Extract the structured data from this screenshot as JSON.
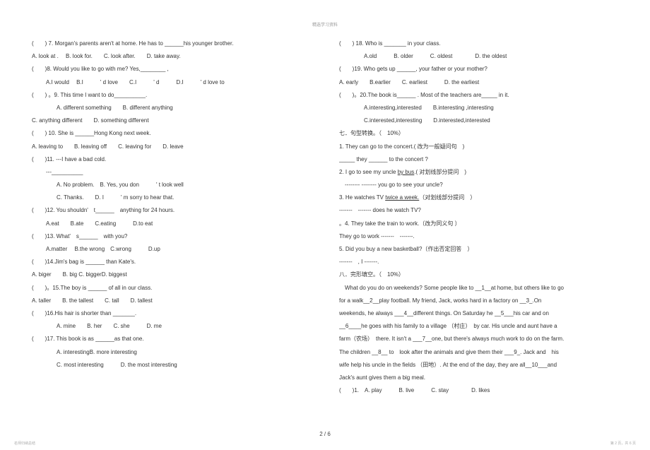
{
  "header": "精选学习资料",
  "left": [
    {
      "cls": "line",
      "t": "(　　) 7. Morgan's parents aren't at home. He has to ______his younger brother."
    },
    {
      "cls": "line",
      "t": " A. look at .　 B. look for.　　C. look after.　　D. take away."
    },
    {
      "cls": "line",
      "t": "(　　)8. Would you like to go with me? Yes,________ ,"
    },
    {
      "cls": "line indent1",
      "t": "A.I would　 B.I　　　' d love　　C.I　　　' d　　　D.I　　　' d love to"
    },
    {
      "cls": "line",
      "t": "(　　) 。9. This time I want to do__________."
    },
    {
      "cls": "line indent2",
      "t": "A. different something　　B. different anything"
    },
    {
      "cls": "line",
      "t": "C. anything different　　D. something different"
    },
    {
      "cls": "line",
      "t": "(　　) 10. She is ______Hong Kong next week."
    },
    {
      "cls": "line",
      "t": "A. leaving to　　B. leaving off　　C. leaving for　　D. leave"
    },
    {
      "cls": "line",
      "t": "(　　)11. ---I have a bad cold."
    },
    {
      "cls": "line indent1",
      "t": "---__________"
    },
    {
      "cls": "line indent2",
      "t": "A. No problem.　B. Yes, you don　　　' t look well"
    },
    {
      "cls": "line indent2",
      "t": "C. Thanks.　　D. I　　　' m sorry to hear that."
    },
    {
      "cls": "line",
      "t": "(　　)12. You shouldn​'　t______　anything for 24 hours."
    },
    {
      "cls": "line indent1",
      "t": "A.eat　　B.ate　　C.eating　　　D.to eat"
    },
    {
      "cls": "line",
      "t": "(　　)13. What​'　s______　with you?"
    },
    {
      "cls": "line indent1",
      "t": "A.matter　 B.the wrong　C.wrong　　　D.up"
    },
    {
      "cls": "line",
      "t": "(　　)14.Jim's bag is ______ than Kate's."
    },
    {
      "cls": "line",
      "t": "A. biger　　B. big C. biggerD. biggest"
    },
    {
      "cls": "line",
      "t": "(　　)。15.The boy is ______ of all in our class."
    },
    {
      "cls": "line",
      "t": " A. taller　　B. the tallest　　C. tall　　D. tallest"
    },
    {
      "cls": "line",
      "t": "(　　)16.His hair is shorter than _______."
    },
    {
      "cls": "line indent2",
      "t": "A. mine　　B. her　　C. she　　　D. me"
    },
    {
      "cls": "line",
      "t": "(　　)17. This book is as ______as that one."
    },
    {
      "cls": "line indent2",
      "t": "A. interestingB. more interesting"
    },
    {
      "cls": "line indent2",
      "t": "C. most interesting　　　D. the most interesting"
    }
  ],
  "right": [
    {
      "cls": "line",
      "t": "(　　) 18. Who is _______ in your class."
    },
    {
      "cls": "line indent2",
      "t": "A.old　　　B. older　　　C. oldest　　　　D. the oldest"
    },
    {
      "cls": "line",
      "t": "(　　)19. Who gets up ______, your father or your mother?"
    },
    {
      "cls": "line",
      "t": "A. early　　B.earlier　　C. earliest　　　D. the earliest"
    },
    {
      "cls": "line",
      "t": "(　　)。20.The book is______ . Most of the teachers are_____ in it."
    },
    {
      "cls": "line indent2",
      "t": "A.interesting,interested　　B.interesting ,interesting"
    },
    {
      "cls": "line indent2",
      "t": "C.interested,interesting　　D.interested,interested"
    },
    {
      "cls": "line",
      "t": "七．句型转换。（　10%）"
    },
    {
      "cls": "line",
      "t": " 1. They can go to the concert.( 改为一般疑问句　)"
    },
    {
      "cls": "line",
      "t": " _____ they ______ to the concert ?"
    },
    {
      "cls": "line",
      "t": " 2. I go to see my uncle <span class='u'>by bus</span>.( 对划线部分提问　)"
    },
    {
      "cls": "line",
      "t": "　-------- -------- you go to see your uncle?"
    },
    {
      "cls": "line",
      "t": " 3. He watches TV <span class='u'>twice a week.</span>（对划线部分提问　）"
    },
    {
      "cls": "line",
      "t": "-------　------- does he watch TV?"
    },
    {
      "cls": "line",
      "t": " 。4. They take the train to work.（改为同义句 ）"
    },
    {
      "cls": "line",
      "t": "They go to work -------　-------."
    },
    {
      "cls": "line",
      "t": " 5. Did you buy a new basketball?（作出否定回答　）"
    },
    {
      "cls": "line",
      "t": "-------　, I -------."
    },
    {
      "cls": "line",
      "t": "八．完形填空。（　10%）"
    },
    {
      "cls": "line",
      "t": "　What do you do on weekends? Some people like to __1__at home, but others like to go"
    },
    {
      "cls": "line",
      "t": "for  a  walk__2__play  football.  My  friend,  Jack,  works  hard  in  a  factory  on  __3_.On"
    },
    {
      "cls": "line",
      "t": "weekends, he always  ___4__different  things.  On  Saturday  he  __5___his  car  and  on"
    },
    {
      "cls": "line",
      "t": "__6____he goes with his family to a village （村庄）　by car. His uncle and aunt have a"
    },
    {
      "cls": "line",
      "t": "farm（农场）　there. It isn't a ___7__one, but there's always much work to do on the farm."
    },
    {
      "cls": "line",
      "t": "The children __8__ to　look after the animals and give them their ___9_. Jack and　his"
    },
    {
      "cls": "line",
      "t": "wife help his uncle in the fields （田地）. At the end of the day, they are all__10___and"
    },
    {
      "cls": "line",
      "t": "Jack's aunt gives them a big meal."
    },
    {
      "cls": "line",
      "t": "(　　)1.　A. play　　　B. live　　　C. stay　　　　D. likes"
    }
  ],
  "footer_page": "2 / 6",
  "footer_left": "名师归纳总结",
  "footer_right": "第 2 页，共 6 页"
}
